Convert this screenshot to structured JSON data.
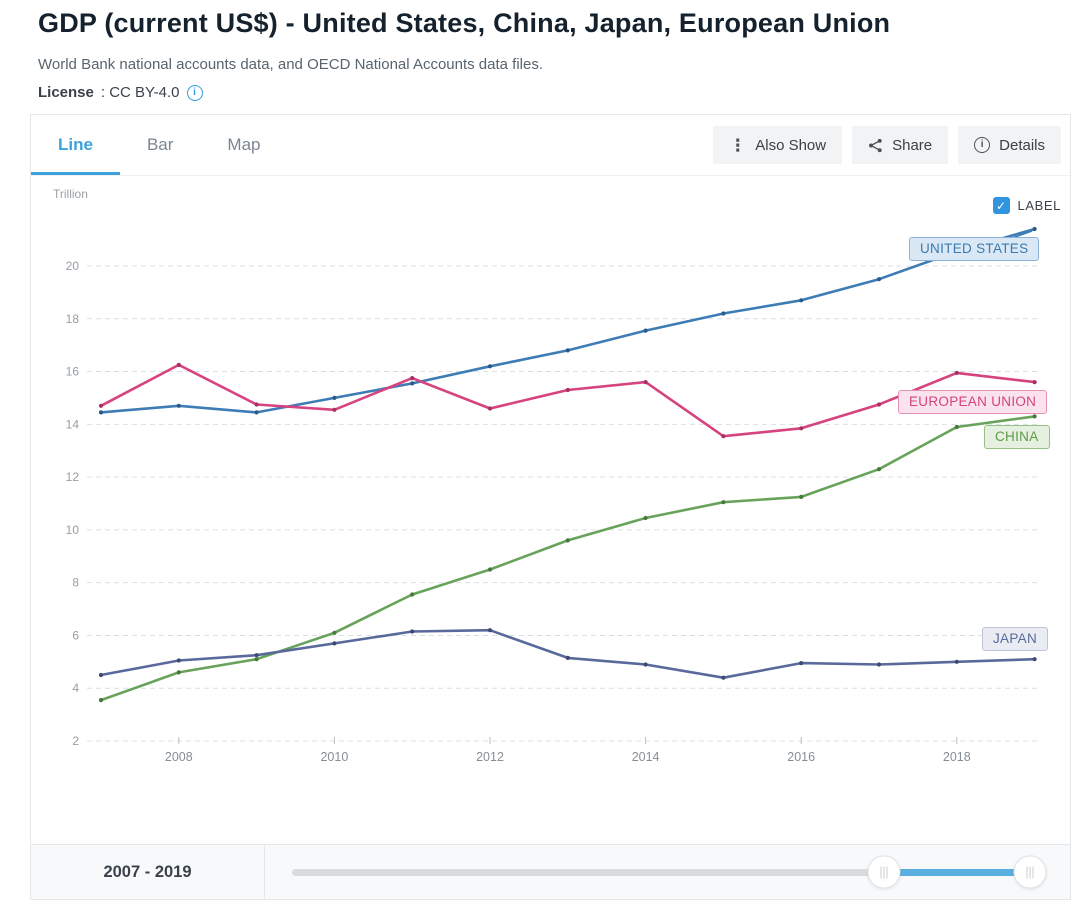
{
  "page": {
    "title": "GDP (current US$) - United States, China, Japan, European Union",
    "subtitle": "World Bank national accounts data, and OECD National Accounts data files.",
    "license_label": "License",
    "license_value": ": CC BY-4.0"
  },
  "tabs": [
    {
      "label": "Line",
      "active": true
    },
    {
      "label": "Bar",
      "active": false
    },
    {
      "label": "Map",
      "active": false
    }
  ],
  "toolbar": {
    "also_show_label": "Also Show",
    "share_label": "Share",
    "details_label": "Details",
    "icons": [
      "more-vertical-icon",
      "share-icon",
      "info-icon"
    ]
  },
  "chart_ui": {
    "unit_label": "Trillion",
    "label_checkbox_label": "LABEL",
    "label_checkbox_checked": true
  },
  "colors": {
    "accent_blue": "#3ba3db",
    "checkbox_blue": "#3095de",
    "slider_range_blue": "#5aafe0",
    "license_info_blue": "#2e9fd8"
  },
  "chart_data": {
    "type": "line",
    "title": "GDP (current US$) - United States, China, Japan, European Union",
    "ylabel": "Trillion",
    "x": [
      2007,
      2008,
      2009,
      2010,
      2011,
      2012,
      2013,
      2014,
      2015,
      2016,
      2017,
      2018,
      2019
    ],
    "x_ticks": [
      2008,
      2010,
      2012,
      2014,
      2016,
      2018
    ],
    "y_ticks": [
      2,
      4,
      6,
      8,
      10,
      12,
      14,
      16,
      18,
      20
    ],
    "ylim": [
      2,
      21.8
    ],
    "grid": true,
    "legend_position": "inline-right-labels",
    "series": [
      {
        "name": "UNITED STATES",
        "color": "#3d7cb5",
        "dot": "#2a5a89",
        "box": {
          "bg": "#d9e8f4",
          "border": "#8cb3d7",
          "text": "#3b79af"
        },
        "values": [
          14.45,
          14.7,
          14.45,
          15.0,
          15.55,
          16.2,
          16.8,
          17.55,
          18.2,
          18.7,
          19.5,
          20.55,
          21.4
        ]
      },
      {
        "name": "EUROPEAN UNION",
        "color": "#d6437f",
        "dot": "#a92e63",
        "box": {
          "bg": "#fbe3ed",
          "border": "#e692b5",
          "text": "#d3437f"
        },
        "values": [
          14.7,
          16.25,
          14.75,
          14.55,
          15.75,
          14.6,
          15.3,
          15.6,
          13.55,
          13.85,
          14.75,
          15.95,
          15.6
        ]
      },
      {
        "name": "CHINA",
        "color": "#68a35b",
        "dot": "#47773c",
        "box": {
          "bg": "#e6f0e0",
          "border": "#97c086",
          "text": "#5c9a49"
        },
        "values": [
          3.55,
          4.6,
          5.1,
          6.1,
          7.55,
          8.5,
          9.6,
          10.45,
          11.05,
          11.25,
          12.3,
          13.9,
          14.3
        ]
      },
      {
        "name": "JAPAN",
        "color": "#59699b",
        "dot": "#3e4a73",
        "box": {
          "bg": "#eaecf4",
          "border": "#bdc4d9",
          "text": "#59699b"
        },
        "values": [
          4.5,
          5.05,
          5.25,
          5.7,
          6.15,
          6.2,
          5.15,
          4.9,
          4.4,
          4.95,
          4.9,
          5.0,
          5.1
        ]
      }
    ]
  },
  "footer": {
    "range_label": "2007 - 2019"
  }
}
